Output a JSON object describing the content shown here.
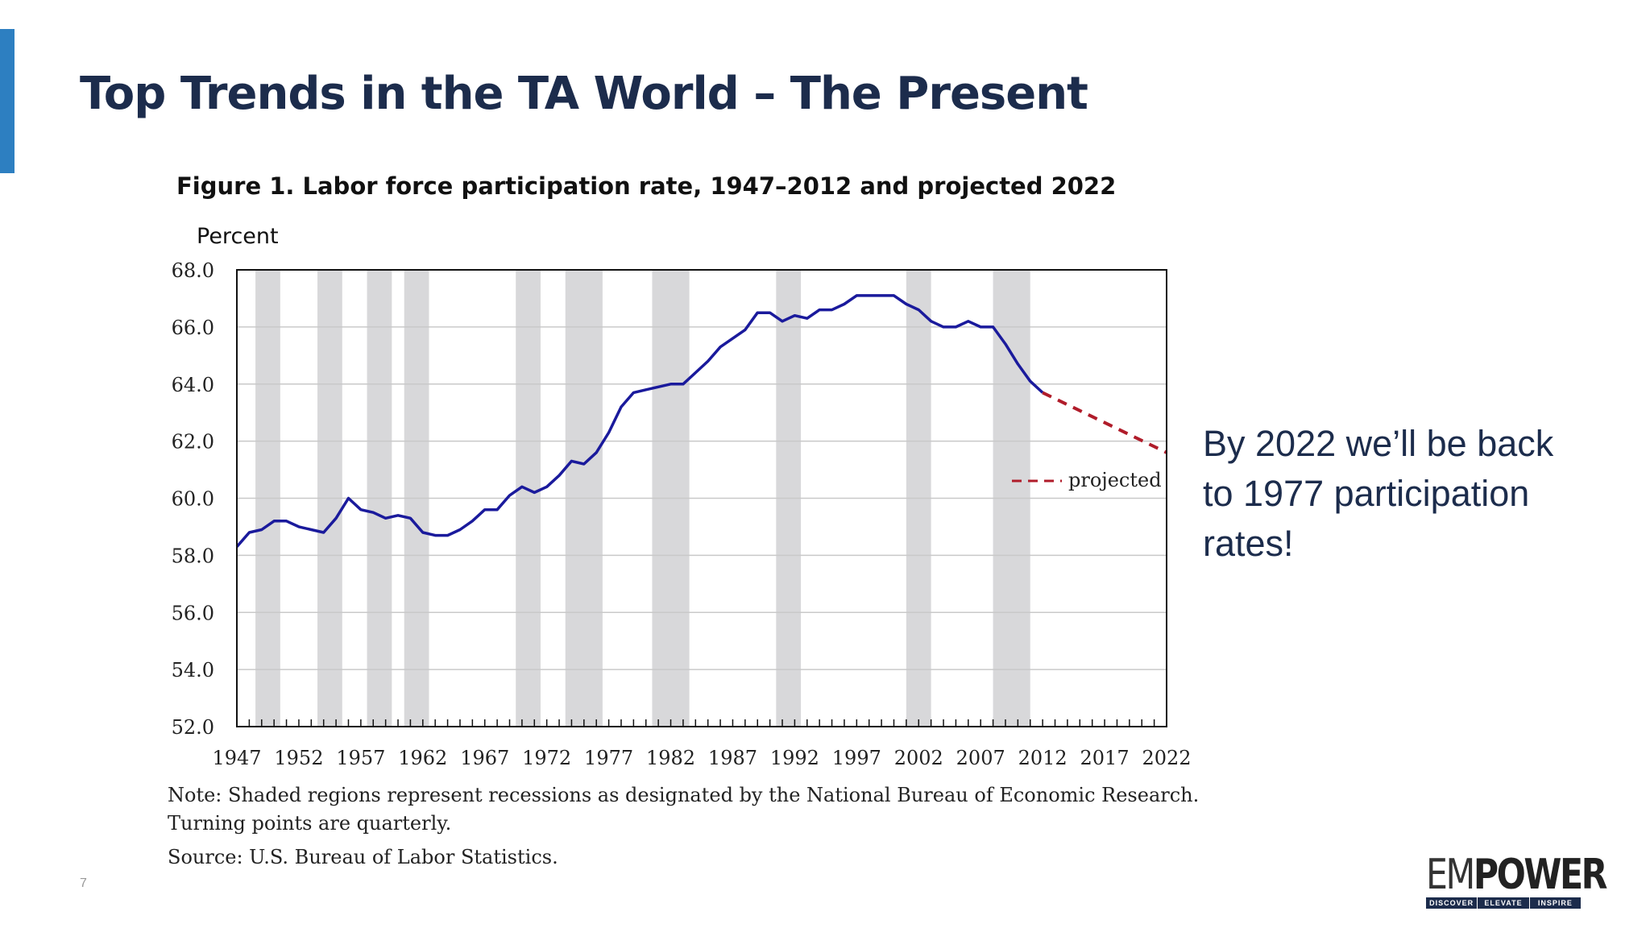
{
  "slide": {
    "title": "Top Trends in the TA World – The Present",
    "page_number": "7",
    "callout": "By 2022 we’ll be back to 1977 participation rates!",
    "accent_color": "#2d7fc1",
    "title_color": "#1c2c4c"
  },
  "logo": {
    "word_light": "EM",
    "word_bold": "POWER",
    "tagline": [
      "DISCOVER",
      "ELEVATE",
      "INSPIRE"
    ]
  },
  "chart_data": {
    "type": "line",
    "title": "Figure 1. Labor force participation rate, 1947–2012 and projected 2022",
    "ylabel": "Percent",
    "xlabel": "",
    "xlim": [
      1947,
      2022
    ],
    "ylim": [
      52,
      68
    ],
    "y_ticks": [
      "52.0",
      "54.0",
      "56.0",
      "58.0",
      "60.0",
      "62.0",
      "64.0",
      "66.0",
      "68.0"
    ],
    "x_ticks": [
      "1947",
      "1952",
      "1957",
      "1962",
      "1967",
      "1972",
      "1977",
      "1982",
      "1987",
      "1992",
      "1997",
      "2002",
      "2007",
      "2012",
      "2017",
      "2022"
    ],
    "grid": "horizontal",
    "recessions": [
      [
        1948.5,
        1950.5
      ],
      [
        1953.5,
        1955.5
      ],
      [
        1957.5,
        1959.5
      ],
      [
        1960.5,
        1962.5
      ],
      [
        1969.5,
        1971.5
      ],
      [
        1973.5,
        1976.5
      ],
      [
        1980.5,
        1983.5
      ],
      [
        1990.5,
        1992.5
      ],
      [
        2001.0,
        2003.0
      ],
      [
        2008.0,
        2011.0
      ]
    ],
    "series": [
      {
        "style": "solid",
        "color": "#1a1a9c",
        "x": [
          1947,
          1948,
          1949,
          1950,
          1951,
          1952,
          1953,
          1954,
          1955,
          1956,
          1957,
          1958,
          1959,
          1960,
          1961,
          1962,
          1963,
          1964,
          1965,
          1966,
          1967,
          1968,
          1969,
          1970,
          1971,
          1972,
          1973,
          1974,
          1975,
          1976,
          1977,
          1978,
          1979,
          1980,
          1981,
          1982,
          1983,
          1984,
          1985,
          1986,
          1987,
          1988,
          1989,
          1990,
          1991,
          1992,
          1993,
          1994,
          1995,
          1996,
          1997,
          1998,
          1999,
          2000,
          2001,
          2002,
          2003,
          2004,
          2005,
          2006,
          2007,
          2008,
          2009,
          2010,
          2011,
          2012
        ],
        "y": [
          58.3,
          58.8,
          58.9,
          59.2,
          59.2,
          59.0,
          58.9,
          58.8,
          59.3,
          60.0,
          59.6,
          59.5,
          59.3,
          59.4,
          59.3,
          58.8,
          58.7,
          58.7,
          58.9,
          59.2,
          59.6,
          59.6,
          60.1,
          60.4,
          60.2,
          60.4,
          60.8,
          61.3,
          61.2,
          61.6,
          62.3,
          63.2,
          63.7,
          63.8,
          63.9,
          64.0,
          64.0,
          64.4,
          64.8,
          65.3,
          65.6,
          65.9,
          66.5,
          66.5,
          66.2,
          66.4,
          66.3,
          66.6,
          66.6,
          66.8,
          67.1,
          67.1,
          67.1,
          67.1,
          66.8,
          66.6,
          66.2,
          66.0,
          66.0,
          66.2,
          66.0,
          66.0,
          65.4,
          64.7,
          64.1,
          63.7
        ]
      },
      {
        "name": "projected",
        "style": "dashed",
        "color": "#b01c2a",
        "x": [
          2012,
          2022
        ],
        "y": [
          63.7,
          61.6
        ]
      }
    ]
  },
  "notes": {
    "note_line1": "Note: Shaded regions represent recessions as designated by the National Bureau of Economic Research.",
    "note_line2": "Turning points are quarterly.",
    "source": "Source: U.S. Bureau of Labor Statistics."
  }
}
